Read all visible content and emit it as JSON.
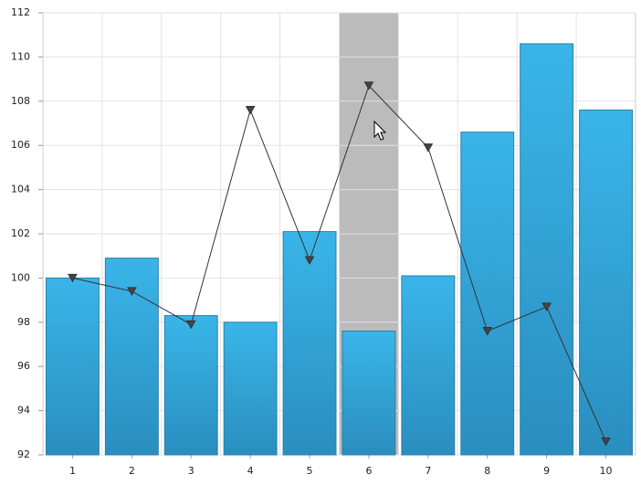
{
  "chart_data": {
    "type": "bar",
    "categories": [
      "1",
      "2",
      "3",
      "4",
      "5",
      "6",
      "7",
      "8",
      "9",
      "10"
    ],
    "series": [
      {
        "type": "bar",
        "color": "#38b1e6",
        "values": [
          100.0,
          100.9,
          98.3,
          98.0,
          102.1,
          97.6,
          100.1,
          106.6,
          110.6,
          107.6
        ]
      },
      {
        "type": "line",
        "color": "#333333",
        "values": [
          100.0,
          99.4,
          97.9,
          107.6,
          100.8,
          108.7,
          105.9,
          97.6,
          98.7,
          92.6
        ]
      }
    ],
    "ylim": [
      92,
      112
    ],
    "yticks": [
      92,
      94,
      96,
      98,
      100,
      102,
      104,
      106,
      108,
      110,
      112
    ],
    "grid": true
  }
}
